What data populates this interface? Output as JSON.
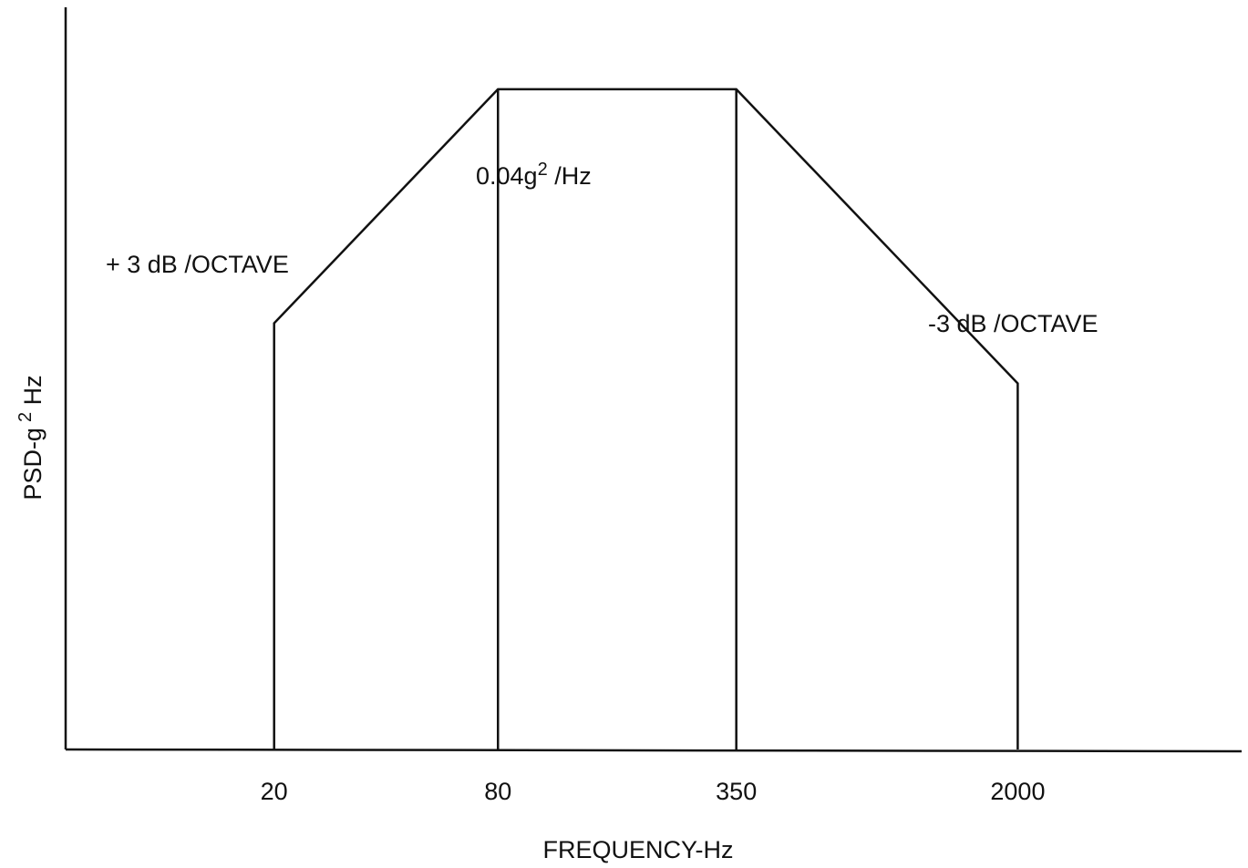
{
  "chart_data": {
    "type": "line",
    "x_scale": "log",
    "y_scale": "log",
    "xlabel": "FREQUENCY-Hz",
    "ylabel_main": "PSD-g",
    "ylabel_sup": "2",
    "ylabel_tail": " Hz",
    "xticks": [
      {
        "value": 20,
        "label": "20"
      },
      {
        "value": 80,
        "label": "80"
      },
      {
        "value": 350,
        "label": "350"
      },
      {
        "value": 2000,
        "label": "2000"
      }
    ],
    "xlim": [
      5.5,
      8000
    ],
    "ylim": [
      0.0008,
      0.065
    ],
    "series": [
      {
        "x": [
          20,
          20,
          80,
          350,
          2000,
          2000
        ],
        "y": [
          0.0008,
          0.01,
          0.04,
          0.04,
          0.007,
          0.0008
        ]
      }
    ],
    "annotations": {
      "plateau": {
        "main": "0.04g",
        "sup": "2",
        "tail": " /Hz"
      },
      "rise": "+ 3 dB /OCTAVE",
      "fall": "-3 dB /OCTAVE"
    },
    "grid": false,
    "legend": "none"
  },
  "colors": {
    "line": "#111111",
    "background": "#ffffff"
  }
}
